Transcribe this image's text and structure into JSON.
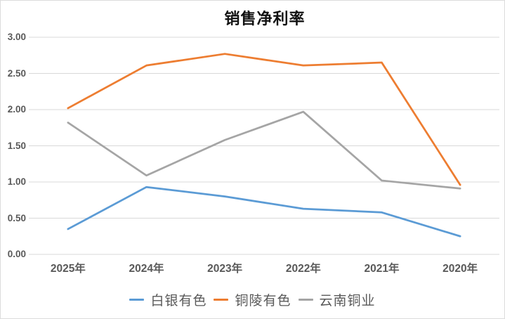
{
  "title": "销售净利率",
  "colors": {
    "series_blue": "#5B9BD5",
    "series_orange": "#ED7D31",
    "series_gray": "#A5A5A5",
    "gridline": "#D9D9D9",
    "axis_text": "#595959",
    "title_text": "#111111",
    "frame_border": "#DCDCDC"
  },
  "chart_data": {
    "type": "line",
    "title": "销售净利率",
    "categories": [
      "2025年",
      "2024年",
      "2023年",
      "2022年",
      "2021年",
      "2020年"
    ],
    "series": [
      {
        "name": "白银有色",
        "color": "#5B9BD5",
        "values": [
          0.35,
          0.93,
          0.8,
          0.63,
          0.58,
          0.25
        ]
      },
      {
        "name": "铜陵有色",
        "color": "#ED7D31",
        "values": [
          2.02,
          2.61,
          2.77,
          2.61,
          2.65,
          0.96
        ]
      },
      {
        "name": "云南铜业",
        "color": "#A5A5A5",
        "values": [
          1.82,
          1.09,
          1.58,
          1.97,
          1.02,
          0.91
        ]
      }
    ],
    "ylim": [
      0,
      3
    ],
    "ytick_step": 0.5,
    "ytick_labels": [
      "0.00",
      "0.50",
      "1.00",
      "1.50",
      "2.00",
      "2.50",
      "3.00"
    ],
    "grid": true,
    "legend_position": "bottom",
    "xlabel": "",
    "ylabel": ""
  }
}
